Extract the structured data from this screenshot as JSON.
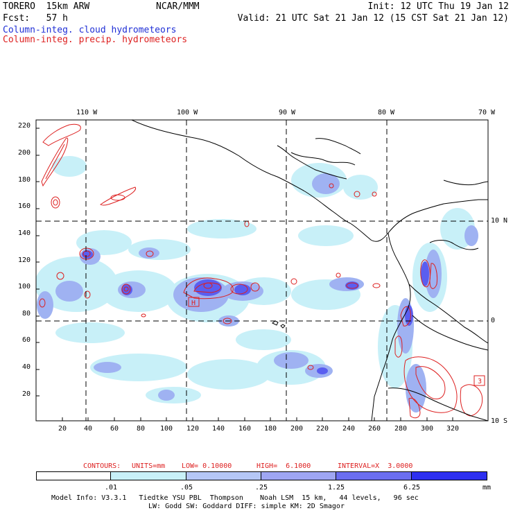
{
  "header": {
    "left_line1": "TORERO  15km ARW",
    "left_line2": "Fcst:   57 h",
    "center": "NCAR/MMM",
    "right_line1": "Init: 12 UTC Thu 19 Jan 12",
    "right_line2": "Valid: 21 UTC Sat 21 Jan 12 (15 CST Sat 21 Jan 12)",
    "legend_cloud": "Column-integ. cloud hydrometeors",
    "legend_precip": "Column-integ. precip. hydrometeors"
  },
  "map": {
    "longitude_labels": [
      "110 W",
      "100 W",
      "90 W",
      "80 W",
      "70 W"
    ],
    "latitude_labels": [
      "10 N",
      "0",
      "10 S"
    ],
    "x_grid_labels": [
      "20",
      "40",
      "60",
      "80",
      "100",
      "120",
      "140",
      "160",
      "180",
      "200",
      "220",
      "240",
      "260",
      "280",
      "300",
      "320"
    ],
    "y_grid_labels": [
      "220",
      "200",
      "180",
      "160",
      "140",
      "120",
      "100",
      "80",
      "60",
      "40",
      "20"
    ],
    "high_markers": [
      "H",
      "3"
    ],
    "colors": {
      "coast": "#000000",
      "graticule": "#000000",
      "precip_contour": "#dd1f1f",
      "cloud_light": "#c8f0f8",
      "cloud_mid": "#9fb2f2",
      "cloud_dark": "#5a5ef0"
    }
  },
  "contour_info": {
    "contours_label": "CONTOURS:",
    "units": "UNITS=mm",
    "low": "LOW= 0.10000",
    "high": "HIGH=  6.1000",
    "interval": "INTERVAL=X  3.0000"
  },
  "colorbar": {
    "labels": [
      ".01",
      ".05",
      ".25",
      "1.25",
      "6.25"
    ],
    "unit": "mm",
    "colors": [
      "#ffffff",
      "#c8f0f8",
      "#b5c7f6",
      "#9fa6f3",
      "#6b6ef0",
      "#2d2ff0"
    ]
  },
  "footer": {
    "line1": "Model Info: V3.3.1   Tiedtke YSU PBL  Thompson    Noah LSM  15 km,   44 levels,   96 sec",
    "line2": "LW: Godd SW: Goddard DIFF: simple KM: 2D Smagor"
  }
}
